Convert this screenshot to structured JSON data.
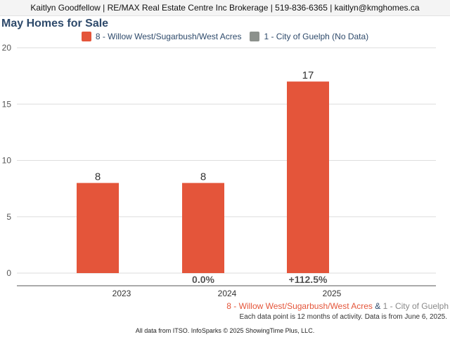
{
  "header": {
    "banner": "Kaitlyn Goodfellow | RE/MAX Real Estate Centre Inc Brokerage | 519-836-6365 | kaitlyn@kmghomes.ca"
  },
  "colors": {
    "series1": "#e4553a",
    "series2": "#8c918c",
    "title": "#2e4a6b"
  },
  "chart_data": {
    "type": "bar",
    "title": "May Homes for Sale",
    "categories": [
      "2023",
      "2024",
      "2025"
    ],
    "series": [
      {
        "name": "8 - Willow West/Sugarbush/West Acres",
        "values": [
          8,
          8,
          17
        ]
      },
      {
        "name": "1 - City of Guelph (No Data)",
        "values": [
          null,
          null,
          null
        ]
      }
    ],
    "data_labels": [
      "8",
      "8",
      "17"
    ],
    "change_labels": [
      "",
      "0.0%",
      "+112.5%"
    ],
    "ylim": [
      0,
      20
    ],
    "yticks": [
      0,
      5,
      10,
      15,
      20
    ],
    "grid": true,
    "legend_position": "top-center",
    "xlabel": "",
    "ylabel": ""
  },
  "footer": {
    "legend_series1": "8 - Willow West/Sugarbush/West Acres",
    "legend_amp": "&",
    "legend_series2": "1 - City of Guelph",
    "note": "Each data point is 12 months of activity. Data is from June 6, 2025.",
    "credits": "All data from ITSO. InfoSparks © 2025 ShowingTime Plus, LLC."
  }
}
